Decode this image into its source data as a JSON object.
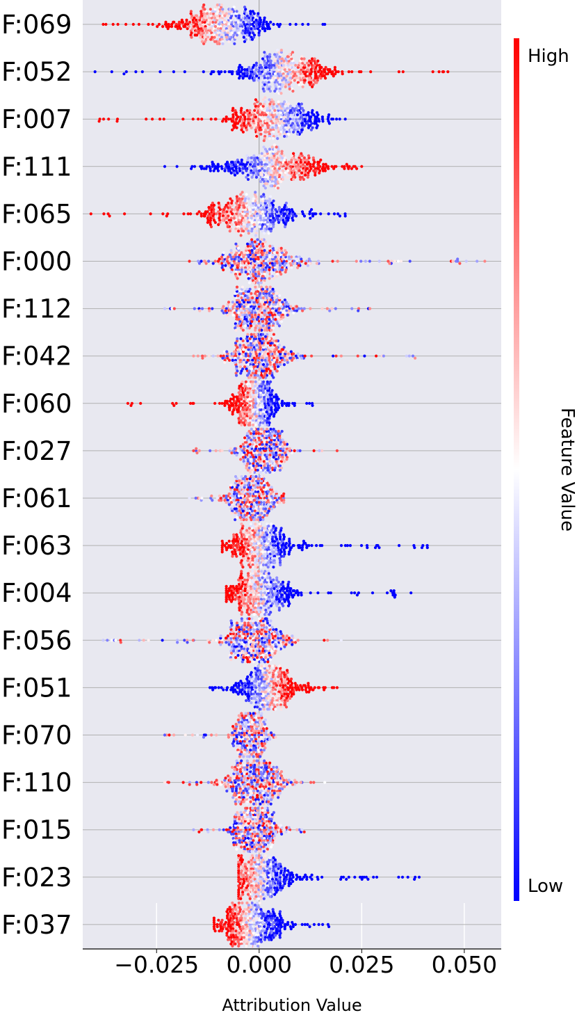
{
  "chart_data": {
    "type": "scatter",
    "xlabel": "Attribution Value",
    "ylabel": "",
    "xlim": [
      -0.043,
      0.059
    ],
    "xticks": [
      -0.025,
      0.0,
      0.025,
      0.05
    ],
    "xtick_labels": [
      "−0.025",
      "0.000",
      "0.025",
      "0.050"
    ],
    "grid": true,
    "colorbar": {
      "label": "Feature Value",
      "high": "High",
      "low": "Low",
      "colors": [
        "#0000ff",
        "#ffffff",
        "#ff0000"
      ]
    },
    "plot_background": "#e8e8f0",
    "features": [
      {
        "name": "F:069",
        "min": -0.038,
        "max": 0.016,
        "center": -0.009,
        "spread": 0.006,
        "trend": -1
      },
      {
        "name": "F:052",
        "min": -0.04,
        "max": 0.046,
        "center": 0.006,
        "spread": 0.006,
        "trend": 1
      },
      {
        "name": "F:007",
        "min": -0.039,
        "max": 0.021,
        "center": 0.004,
        "spread": 0.006,
        "trend": -1
      },
      {
        "name": "F:111",
        "min": -0.023,
        "max": 0.025,
        "center": 0.003,
        "spread": 0.007,
        "trend": 1
      },
      {
        "name": "F:065",
        "min": -0.041,
        "max": 0.021,
        "center": -0.002,
        "spread": 0.006,
        "trend": -1
      },
      {
        "name": "F:000",
        "min": -0.017,
        "max": 0.055,
        "center": 0.0,
        "spread": 0.005,
        "trend": 0
      },
      {
        "name": "F:112",
        "min": -0.023,
        "max": 0.027,
        "center": 0.0,
        "spread": 0.004,
        "trend": 0
      },
      {
        "name": "F:042",
        "min": -0.016,
        "max": 0.038,
        "center": 0.0,
        "spread": 0.004,
        "trend": 0
      },
      {
        "name": "F:060",
        "min": -0.032,
        "max": 0.013,
        "center": -0.001,
        "spread": 0.003,
        "trend": -1
      },
      {
        "name": "F:027",
        "min": -0.016,
        "max": 0.019,
        "center": 0.001,
        "spread": 0.003,
        "trend": 0
      },
      {
        "name": "F:061",
        "min": -0.017,
        "max": 0.006,
        "center": -0.002,
        "spread": 0.003,
        "trend": 0
      },
      {
        "name": "F:063",
        "min": -0.009,
        "max": 0.041,
        "center": 0.0,
        "spread": 0.004,
        "trend": -1
      },
      {
        "name": "F:004",
        "min": -0.008,
        "max": 0.037,
        "center": 0.0,
        "spread": 0.004,
        "trend": -1
      },
      {
        "name": "F:056",
        "min": -0.038,
        "max": 0.02,
        "center": -0.001,
        "spread": 0.004,
        "trend": 0
      },
      {
        "name": "F:051",
        "min": -0.012,
        "max": 0.019,
        "center": 0.002,
        "spread": 0.004,
        "trend": 1
      },
      {
        "name": "F:070",
        "min": -0.023,
        "max": 0.004,
        "center": -0.002,
        "spread": 0.002,
        "trend": 0
      },
      {
        "name": "F:110",
        "min": -0.023,
        "max": 0.016,
        "center": -0.001,
        "spread": 0.004,
        "trend": 0
      },
      {
        "name": "F:015",
        "min": -0.016,
        "max": 0.011,
        "center": -0.001,
        "spread": 0.003,
        "trend": 0
      },
      {
        "name": "F:023",
        "min": -0.005,
        "max": 0.039,
        "center": 0.0,
        "spread": 0.004,
        "trend": -1
      },
      {
        "name": "F:037",
        "min": -0.011,
        "max": 0.017,
        "center": -0.002,
        "spread": 0.004,
        "trend": -1
      }
    ]
  }
}
